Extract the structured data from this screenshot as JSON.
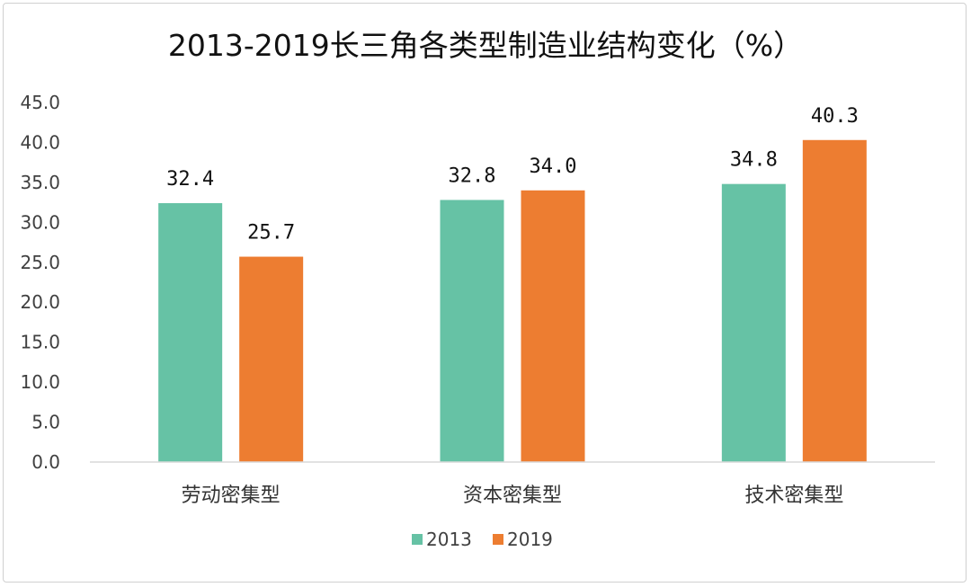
{
  "chart_data": {
    "type": "bar",
    "title": "2013-2019长三角各类型制造业结构变化（%）",
    "categories": [
      "劳动密集型",
      "资本密集型",
      "技术密集型"
    ],
    "series": [
      {
        "name": "2013",
        "values": [
          32.4,
          32.8,
          34.8
        ],
        "labels": [
          "32.4",
          "32.8",
          "34.8"
        ],
        "color": "#66c2a5"
      },
      {
        "name": "2019",
        "values": [
          25.7,
          34.0,
          40.3
        ],
        "labels": [
          "25.7",
          "34.0",
          "40.3"
        ],
        "color": "#ed7d31"
      }
    ],
    "ylim": [
      0,
      45
    ],
    "yticks": [
      0,
      5,
      10,
      15,
      20,
      25,
      30,
      35,
      40,
      45
    ],
    "ytick_labels": [
      "0.0",
      "5.0",
      "10.0",
      "15.0",
      "20.0",
      "25.0",
      "30.0",
      "35.0",
      "40.0",
      "45.0"
    ],
    "xlabel": "",
    "ylabel": "",
    "grid": false,
    "legend": "bottom-center"
  }
}
